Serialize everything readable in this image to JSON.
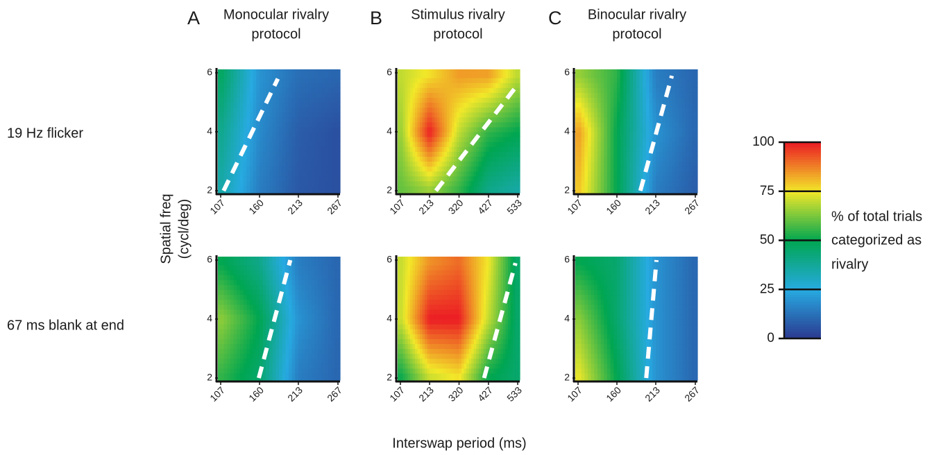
{
  "columns": [
    {
      "letter": "A",
      "title": [
        "Monocular rivalry",
        "protocol"
      ]
    },
    {
      "letter": "B",
      "title": [
        "Stimulus rivalry",
        "protocol"
      ]
    },
    {
      "letter": "C",
      "title": [
        "Binocular rivalry",
        "protocol"
      ]
    }
  ],
  "row_labels": [
    "19 Hz flicker",
    "67 ms blank at end"
  ],
  "ylabel": [
    "Spatial freq",
    "(cycl/deg)"
  ],
  "xlabel": "Interswap period (ms)",
  "colorbar": {
    "label": [
      "% of total trials",
      "categorized as",
      "rivalry"
    ],
    "lim": [
      0,
      100
    ],
    "ticks": [
      0,
      25,
      50,
      75,
      100
    ],
    "colors": [
      "#2b3990",
      "#27aae1",
      "#00a651",
      "#f2e829",
      "#ec1c24"
    ]
  },
  "chart_data": [
    {
      "type": "heatmap",
      "x": [
        107,
        160,
        213,
        267
      ],
      "y": [
        2,
        4,
        6
      ],
      "xlim": [
        107,
        267
      ],
      "ylim": [
        2,
        6
      ],
      "xticks": [
        107,
        160,
        213,
        267
      ],
      "yticks": [
        2,
        4,
        6
      ],
      "values": [
        [
          35,
          15,
          7,
          5
        ],
        [
          40,
          18,
          8,
          5
        ],
        [
          48,
          20,
          12,
          10
        ]
      ],
      "boundary": {
        "x": [
          111,
          185
        ],
        "y": [
          2,
          5.8
        ]
      }
    },
    {
      "type": "heatmap",
      "x": [
        107,
        213,
        320,
        427,
        533
      ],
      "y": [
        2,
        4,
        6
      ],
      "xlim": [
        107,
        533
      ],
      "ylim": [
        2,
        6
      ],
      "xticks": [
        107,
        213,
        320,
        427,
        533
      ],
      "yticks": [
        2,
        4,
        6
      ],
      "values": [
        [
          60,
          65,
          55,
          40,
          35
        ],
        [
          65,
          100,
          70,
          55,
          50
        ],
        [
          70,
          75,
          85,
          85,
          70
        ]
      ],
      "boundary": {
        "x": [
          236,
          533
        ],
        "y": [
          2,
          5.6
        ]
      }
    },
    {
      "type": "heatmap",
      "x": [
        107,
        160,
        213,
        267
      ],
      "y": [
        2,
        4,
        6
      ],
      "xlim": [
        107,
        267
      ],
      "ylim": [
        2,
        6
      ],
      "xticks": [
        107,
        160,
        213,
        267
      ],
      "yticks": [
        2,
        4,
        6
      ],
      "values": [
        [
          80,
          50,
          15,
          8
        ],
        [
          85,
          50,
          20,
          10
        ],
        [
          65,
          55,
          15,
          10
        ]
      ],
      "boundary": {
        "x": [
          192,
          235
        ],
        "y": [
          2,
          5.9
        ]
      }
    },
    {
      "type": "heatmap",
      "x": [
        107,
        160,
        213,
        267
      ],
      "y": [
        2,
        4,
        6
      ],
      "xlim": [
        107,
        267
      ],
      "ylim": [
        2,
        6
      ],
      "xticks": [
        107,
        160,
        213,
        267
      ],
      "yticks": [
        2,
        4,
        6
      ],
      "values": [
        [
          55,
          45,
          15,
          10
        ],
        [
          65,
          50,
          20,
          10
        ],
        [
          50,
          40,
          15,
          10
        ]
      ],
      "boundary": {
        "x": [
          159,
          202
        ],
        "y": [
          2,
          6
        ]
      }
    },
    {
      "type": "heatmap",
      "x": [
        107,
        213,
        320,
        427,
        533
      ],
      "y": [
        2,
        4,
        6
      ],
      "xlim": [
        107,
        533
      ],
      "ylim": [
        2,
        6
      ],
      "xticks": [
        107,
        213,
        320,
        427,
        533
      ],
      "yticks": [
        2,
        4,
        6
      ],
      "values": [
        [
          50,
          70,
          75,
          50,
          45
        ],
        [
          70,
          100,
          100,
          70,
          45
        ],
        [
          70,
          85,
          90,
          75,
          45
        ]
      ],
      "boundary": {
        "x": [
          411,
          525
        ],
        "y": [
          2,
          5.9
        ]
      }
    },
    {
      "type": "heatmap",
      "x": [
        107,
        160,
        213,
        267
      ],
      "y": [
        2,
        4,
        6
      ],
      "xlim": [
        107,
        267
      ],
      "ylim": [
        2,
        6
      ],
      "xticks": [
        107,
        160,
        213,
        267
      ],
      "yticks": [
        2,
        4,
        6
      ],
      "values": [
        [
          75,
          50,
          20,
          10
        ],
        [
          65,
          45,
          20,
          10
        ],
        [
          50,
          45,
          20,
          10
        ]
      ],
      "boundary": {
        "x": [
          200,
          214
        ],
        "y": [
          2,
          6
        ]
      }
    }
  ]
}
